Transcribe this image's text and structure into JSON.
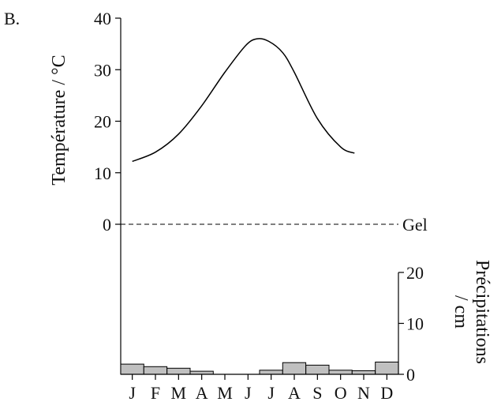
{
  "panel_label": "B.",
  "chart_data": {
    "type": "climate-diagram",
    "months": [
      "J",
      "F",
      "M",
      "A",
      "M",
      "J",
      "J",
      "A",
      "S",
      "O",
      "N",
      "D"
    ],
    "temperature": {
      "ylabel": "Température / °C",
      "ylim": [
        0,
        40
      ],
      "ticks": [
        "0",
        "10",
        "20",
        "30",
        "40"
      ],
      "line": [
        [
          0.0,
          12.2
        ],
        [
          1.0,
          14.0
        ],
        [
          2.0,
          17.5
        ],
        [
          3.0,
          23.0
        ],
        [
          4.0,
          29.5
        ],
        [
          4.9,
          34.7
        ],
        [
          5.4,
          36.0
        ],
        [
          5.9,
          35.5
        ],
        [
          6.5,
          33.3
        ],
        [
          7.0,
          29.5
        ],
        [
          8.0,
          20.5
        ],
        [
          9.0,
          15.0
        ],
        [
          9.6,
          13.8
        ]
      ],
      "frost_line": {
        "value": 0,
        "label": "Gel"
      }
    },
    "precipitation": {
      "ylabel": "Précipitations / cm",
      "ylim": [
        0,
        20
      ],
      "ticks": [
        "0",
        "10",
        "20"
      ],
      "values": [
        2.0,
        1.5,
        1.2,
        0.6,
        0,
        0,
        0.8,
        2.3,
        1.8,
        0.8,
        0.7,
        2.4
      ]
    },
    "colors": {
      "bar_fill": "#c0c0c0",
      "line": "#000000"
    }
  }
}
